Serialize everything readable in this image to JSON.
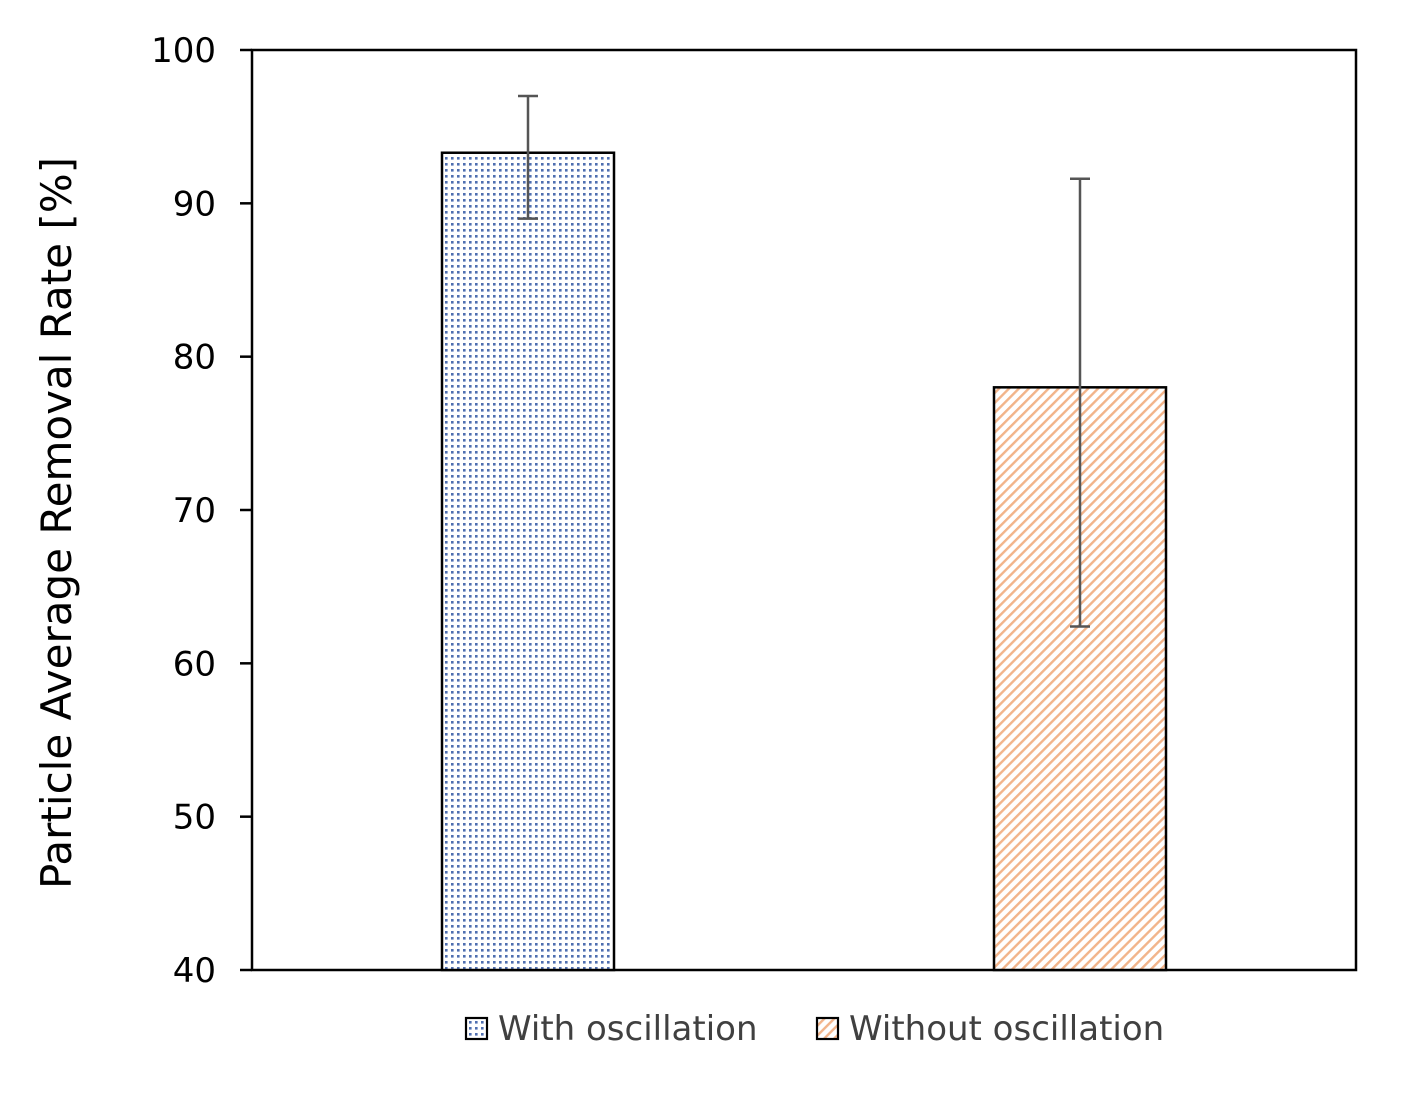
{
  "chart_data": {
    "type": "bar",
    "title": "",
    "xlabel": "",
    "ylabel": "Particle Average Removal Rate [%]",
    "ylim": [
      40,
      100
    ],
    "yticks": [
      40,
      50,
      60,
      70,
      80,
      90,
      100
    ],
    "grid": false,
    "legend_position": "bottom",
    "series": [
      {
        "name": "With oscillation",
        "value": 93.3,
        "error_low": 89.0,
        "error_high": 97.0,
        "pattern": "dots",
        "color": "#4f6fb0"
      },
      {
        "name": "Without oscillation",
        "value": 78.0,
        "error_low": 62.4,
        "error_high": 91.6,
        "pattern": "diagonal-stripes",
        "color": "#f2b48a"
      }
    ]
  }
}
